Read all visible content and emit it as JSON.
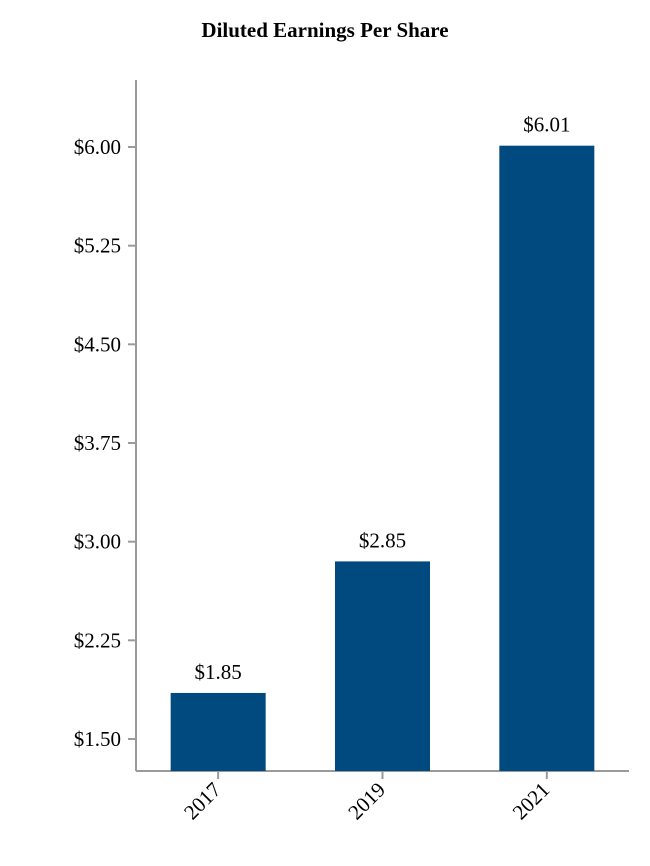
{
  "chart_data": {
    "type": "bar",
    "title": "Diluted Earnings Per Share",
    "xlabel": "",
    "ylabel": "",
    "categories": [
      "2017",
      "2019",
      "2021"
    ],
    "values": [
      1.85,
      2.85,
      6.01
    ],
    "data_labels": [
      "$1.85",
      "$2.85",
      "$6.01"
    ],
    "yticks": [
      {
        "value": 1.5,
        "label": "$1.50"
      },
      {
        "value": 2.25,
        "label": "$2.25"
      },
      {
        "value": 3.0,
        "label": "$3.00"
      },
      {
        "value": 3.75,
        "label": "$3.75"
      },
      {
        "value": 4.5,
        "label": "$4.50"
      },
      {
        "value": 5.25,
        "label": "$5.25"
      },
      {
        "value": 6.0,
        "label": "$6.00"
      }
    ],
    "ylim": [
      1.5,
      6.0
    ],
    "grid": false,
    "legend": "none",
    "bar_color": "#004a7f",
    "axis_color": "#9a9a9a"
  }
}
